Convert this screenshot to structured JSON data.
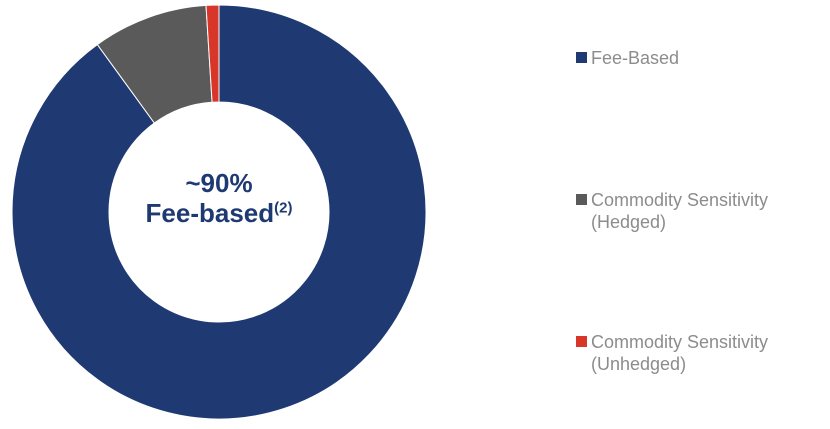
{
  "chart_data": {
    "type": "pie",
    "categories": [
      "Fee-Based",
      "Commodity Sensitivity (Hedged)",
      "Commodity Sensitivity (Unhedged)"
    ],
    "values": [
      90,
      9,
      1
    ],
    "colors": [
      "#1f3a73",
      "#5a5a5a",
      "#d9362a"
    ],
    "donut": true,
    "legend": "right",
    "center_label": {
      "line1": "~90%",
      "line2": "Fee-based",
      "superscript": "(2)"
    },
    "legend_labels": [
      "Fee-Based",
      "Commodity Sensitivity\n(Hedged)",
      "Commodity Sensitivity\n(Unhedged)"
    ]
  }
}
